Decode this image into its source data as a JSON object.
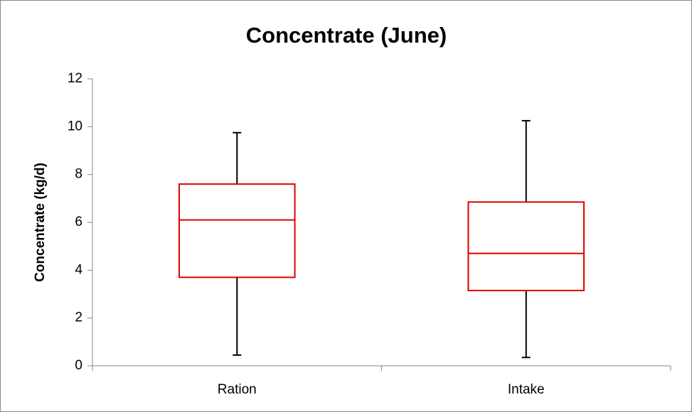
{
  "chart_data": {
    "type": "box",
    "title": "Concentrate (June)",
    "y_label": "Concentrate (kg/d)",
    "categories": [
      "Ration",
      "Intake"
    ],
    "boxes": [
      {
        "min": 0.45,
        "q1": 3.7,
        "median": 6.1,
        "q3": 7.6,
        "max": 9.75
      },
      {
        "min": 0.35,
        "q1": 3.15,
        "median": 4.7,
        "q3": 6.85,
        "max": 10.25
      }
    ],
    "color": "#e00000",
    "whisker_color": "#000000",
    "ylim": [
      0,
      12
    ],
    "yticks": [
      0,
      2,
      4,
      6,
      8,
      10,
      12
    ],
    "grid": false
  }
}
